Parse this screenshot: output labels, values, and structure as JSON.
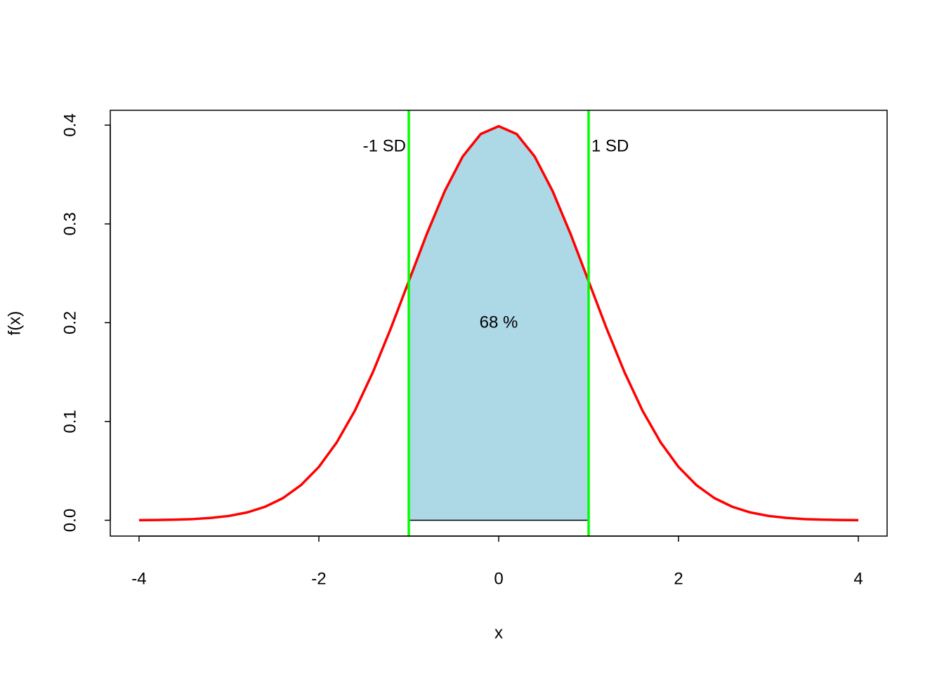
{
  "chart_data": {
    "type": "line",
    "xlabel": "x",
    "ylabel": "f(x)",
    "x": [
      -4,
      -3.8,
      -3.6,
      -3.4,
      -3.2,
      -3,
      -2.8,
      -2.6,
      -2.4,
      -2.2,
      -2,
      -1.8,
      -1.6,
      -1.4,
      -1.2,
      -1,
      -0.8,
      -0.6,
      -0.4,
      -0.2,
      0,
      0.2,
      0.4,
      0.6,
      0.8,
      1,
      1.2,
      1.4,
      1.6,
      1.8,
      2,
      2.2,
      2.4,
      2.6,
      2.8,
      3,
      3.2,
      3.4,
      3.6,
      3.8,
      4
    ],
    "values": [
      0.0001,
      0.0003,
      0.0006,
      0.0012,
      0.0024,
      0.0044,
      0.0079,
      0.0136,
      0.0224,
      0.0355,
      0.054,
      0.079,
      0.1109,
      0.1497,
      0.1942,
      0.242,
      0.2897,
      0.3332,
      0.3683,
      0.391,
      0.3989,
      0.391,
      0.3683,
      0.3332,
      0.2897,
      0.242,
      0.1942,
      0.1497,
      0.1109,
      0.079,
      0.054,
      0.0355,
      0.0224,
      0.0136,
      0.0079,
      0.0044,
      0.0024,
      0.0012,
      0.0006,
      0.0003,
      0.0001
    ],
    "color": "#ff0000",
    "sd_lines": {
      "x": [
        -1,
        1
      ],
      "labels": [
        "-1 SD",
        "1 SD"
      ],
      "color": "#00ff00"
    },
    "shade_color": "#add8e6",
    "shade_label": "68 %",
    "xlim": [
      -4.32,
      4.32
    ],
    "ylim": [
      -0.016,
      0.415
    ],
    "xticks": [
      -4,
      -2,
      0,
      2,
      4
    ],
    "yticks": [
      {
        "value": 0,
        "label": "0.0"
      },
      0.1,
      0.2,
      0.3,
      0.4
    ]
  }
}
